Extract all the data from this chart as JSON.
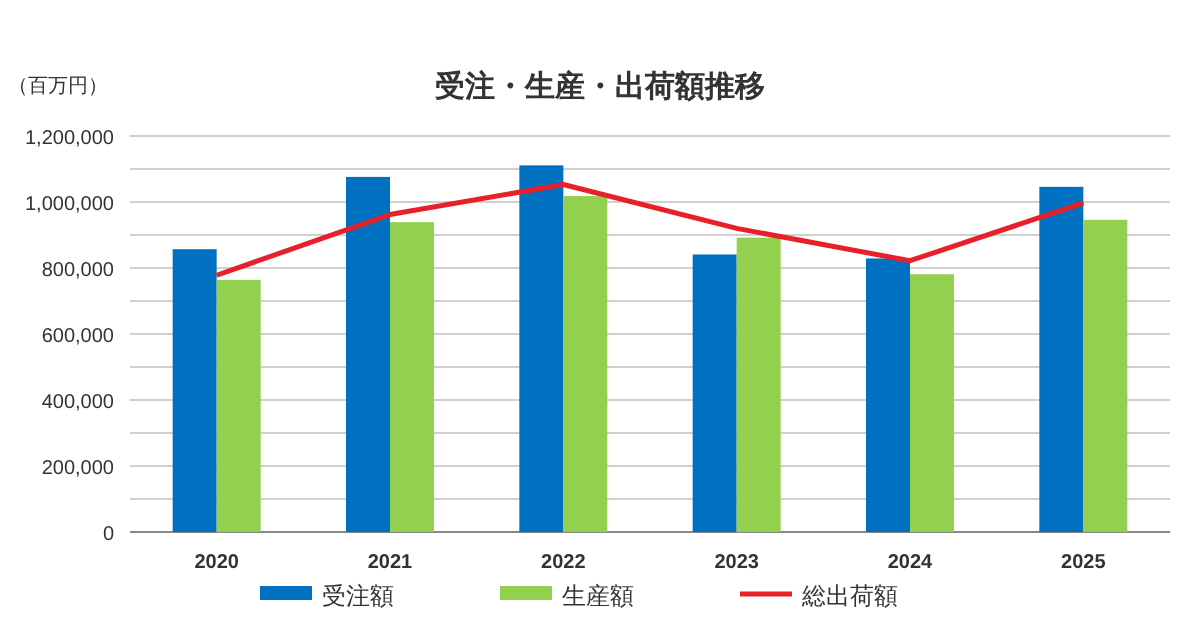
{
  "chart_data": {
    "type": "bar",
    "title": "受注・生産・出荷額推移",
    "ylabel": "（百万円）",
    "categories": [
      "2020",
      "2021",
      "2022",
      "2023",
      "2024",
      "2025"
    ],
    "series": [
      {
        "name": "受注額",
        "color": "#0070c0",
        "values": [
          857000,
          1076000,
          1111000,
          841000,
          829000,
          1046000
        ]
      },
      {
        "name": "生産額",
        "color": "#92d050",
        "values": [
          764000,
          939000,
          1018000,
          892000,
          781000,
          946000
        ]
      },
      {
        "name": "総出荷額",
        "color": "#e8202a",
        "type": "line",
        "values": [
          778000,
          962000,
          1053000,
          920000,
          822000,
          997000
        ]
      }
    ],
    "ylim": [
      0,
      1200000
    ],
    "yticks": [
      0,
      {
        "value": 100000,
        "label": null
      },
      {
        "value": 200000,
        "label": "200,000"
      },
      {
        "value": 300000,
        "label": null
      },
      {
        "value": 400000,
        "label": "400,000"
      },
      {
        "value": 500000,
        "label": null
      },
      {
        "value": 600000,
        "label": "600,000"
      },
      {
        "value": 700000,
        "label": null
      },
      {
        "value": 800000,
        "label": "800,000"
      },
      {
        "value": 900000,
        "label": null
      },
      {
        "value": 1000000,
        "label": "1,000,000"
      },
      {
        "value": 1100000,
        "label": null
      },
      {
        "value": 1200000,
        "label": "1,200,000"
      }
    ],
    "grid": "y",
    "legend": "bottom",
    "marker": "none",
    "line_style": "solid"
  }
}
